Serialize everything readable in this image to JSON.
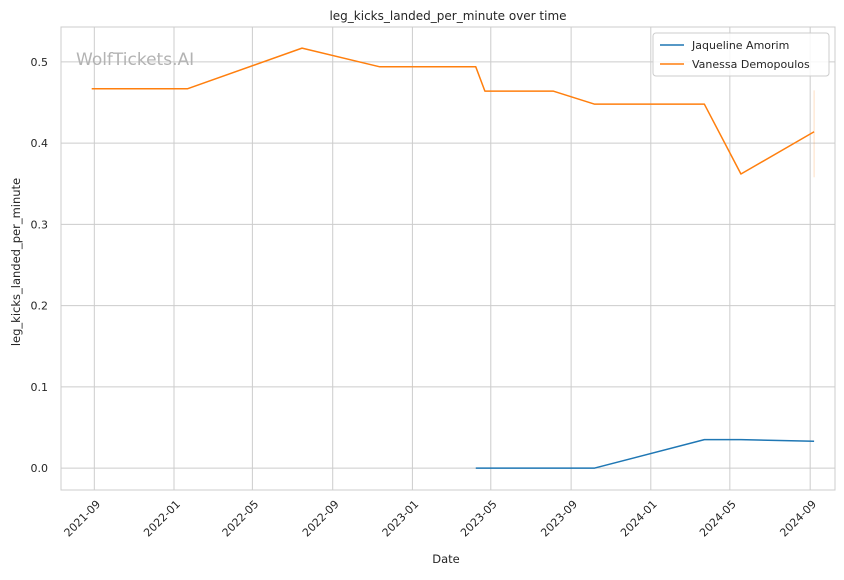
{
  "chart_data": {
    "type": "line",
    "title": "leg_kicks_landed_per_minute over time",
    "xlabel": "Date",
    "ylabel": "leg_kicks_landed_per_minute",
    "watermark": "WolfTickets.AI",
    "grid": true,
    "legend_position": "top-right",
    "xlim": [
      "2021-07-12",
      "2024-10-09"
    ],
    "ylim": [
      -0.027,
      0.543
    ],
    "x_ticks": [
      "2021-09",
      "2022-01",
      "2022-05",
      "2022-09",
      "2023-01",
      "2023-05",
      "2023-09",
      "2024-01",
      "2024-05",
      "2024-09"
    ],
    "x_tick_dates": [
      "2021-09-01",
      "2022-01-01",
      "2022-05-01",
      "2022-09-01",
      "2023-01-01",
      "2023-05-01",
      "2023-09-01",
      "2024-01-01",
      "2024-05-01",
      "2024-09-01"
    ],
    "y_ticks": [
      "0.0",
      "0.1",
      "0.2",
      "0.3",
      "0.4",
      "0.5"
    ],
    "y_tick_values": [
      0.0,
      0.1,
      0.2,
      0.3,
      0.4,
      0.5
    ],
    "series": [
      {
        "name": "Jaqueline Amorim",
        "color": "#1f77b4",
        "x": [
          "2023-04-08",
          "2023-10-07",
          "2024-03-23",
          "2024-05-18",
          "2024-09-07"
        ],
        "y": [
          0.0,
          0.0,
          0.035,
          0.035,
          0.033
        ]
      },
      {
        "name": "Vanessa Demopoulos",
        "color": "#ff7f0e",
        "x": [
          "2021-08-28",
          "2022-01-22",
          "2022-07-16",
          "2022-11-12",
          "2023-04-08",
          "2023-04-22",
          "2023-08-05",
          "2023-10-07",
          "2024-03-23",
          "2024-05-18",
          "2024-09-07"
        ],
        "y": [
          0.467,
          0.467,
          0.517,
          0.494,
          0.494,
          0.464,
          0.464,
          0.448,
          0.448,
          0.362,
          0.414
        ]
      }
    ],
    "error_bar": {
      "series": "Vanessa Demopoulos",
      "x": "2024-09-07",
      "low": 0.358,
      "high": 0.465,
      "color": "#ff7f0e"
    }
  }
}
